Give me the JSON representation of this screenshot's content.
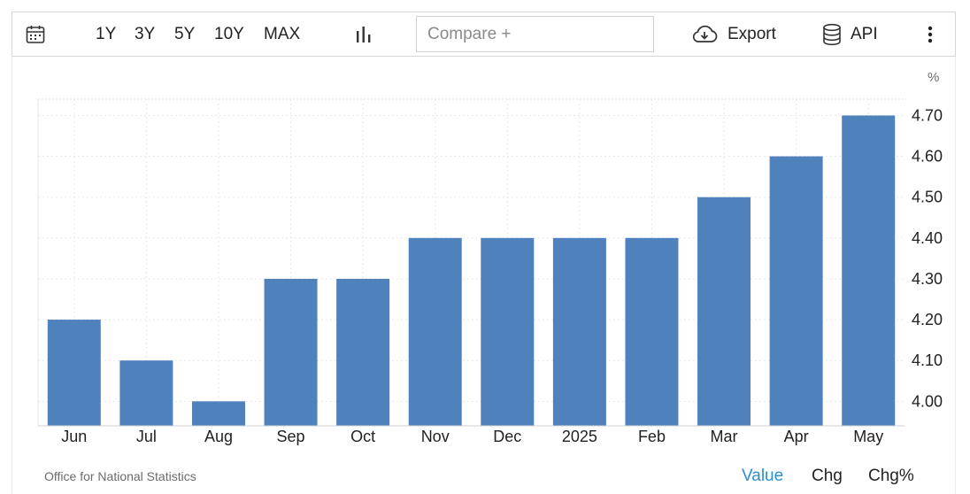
{
  "toolbar": {
    "calendar_icon": "calendar-icon",
    "ranges": [
      "1Y",
      "3Y",
      "5Y",
      "10Y",
      "MAX"
    ],
    "chart_type_icon": "bar-chart-icon",
    "compare_placeholder": "Compare +",
    "export_label": "Export",
    "export_icon": "cloud-download-icon",
    "api_label": "API",
    "api_icon": "database-icon",
    "more_icon": "more-vertical-icon"
  },
  "chart_data": {
    "type": "bar",
    "categories": [
      "Jun",
      "Jul",
      "Aug",
      "Sep",
      "Oct",
      "Nov",
      "Dec",
      "2025",
      "Feb",
      "Mar",
      "Apr",
      "May"
    ],
    "values": [
      4.2,
      4.1,
      4.0,
      4.3,
      4.3,
      4.4,
      4.4,
      4.4,
      4.4,
      4.5,
      4.6,
      4.7
    ],
    "y_unit": "%",
    "y_ticks": [
      "4.00",
      "4.10",
      "4.20",
      "4.30",
      "4.40",
      "4.50",
      "4.60",
      "4.70"
    ],
    "ylim": [
      3.94,
      4.74
    ],
    "bar_color": "#4f81bd",
    "grid": true,
    "y_axis_side": "right"
  },
  "footer": {
    "source": "Office for National Statistics",
    "tabs": [
      {
        "label": "Value",
        "active": true
      },
      {
        "label": "Chg",
        "active": false
      },
      {
        "label": "Chg%",
        "active": false
      }
    ],
    "active_color": "#2a8fd4"
  }
}
